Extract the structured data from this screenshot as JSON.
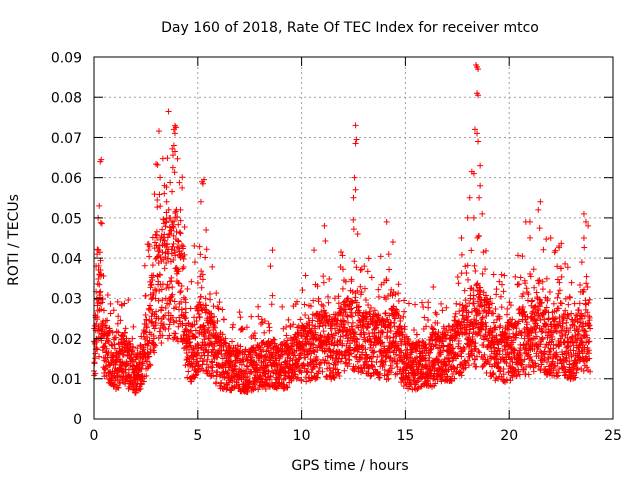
{
  "chart_data": {
    "type": "scatter",
    "title": "Day 160 of 2018, Rate Of TEC Index for receiver mtco",
    "xlabel": "GPS time / hours",
    "ylabel": "ROTI / TECUs",
    "xlim": [
      0,
      25
    ],
    "ylim": [
      0,
      0.09
    ],
    "x_ticks": [
      "0",
      "5",
      "10",
      "15",
      "20",
      "25"
    ],
    "y_ticks": [
      "0",
      "0.01",
      "0.02",
      "0.03",
      "0.04",
      "0.05",
      "0.06",
      "0.07",
      "0.08",
      "0.09"
    ],
    "grid": true,
    "marker": "plus",
    "series": [
      {
        "name": "ROTI",
        "color": "#ff0000",
        "baseline": [
          [
            0.0,
            0.016
          ],
          [
            0.3,
            0.03
          ],
          [
            0.5,
            0.018
          ],
          [
            1.0,
            0.013
          ],
          [
            1.5,
            0.015
          ],
          [
            2.0,
            0.011
          ],
          [
            2.3,
            0.013
          ],
          [
            2.7,
            0.022
          ],
          [
            3.0,
            0.033
          ],
          [
            3.5,
            0.035
          ],
          [
            4.0,
            0.036
          ],
          [
            4.3,
            0.03
          ],
          [
            4.5,
            0.015
          ],
          [
            5.0,
            0.02
          ],
          [
            5.3,
            0.022
          ],
          [
            5.7,
            0.018
          ],
          [
            6.0,
            0.014
          ],
          [
            6.5,
            0.013
          ],
          [
            7.0,
            0.012
          ],
          [
            7.5,
            0.012
          ],
          [
            8.0,
            0.013
          ],
          [
            8.5,
            0.014
          ],
          [
            9.0,
            0.013
          ],
          [
            9.5,
            0.014
          ],
          [
            10.0,
            0.016
          ],
          [
            10.5,
            0.017
          ],
          [
            11.0,
            0.02
          ],
          [
            11.5,
            0.017
          ],
          [
            12.0,
            0.02
          ],
          [
            12.5,
            0.022
          ],
          [
            13.0,
            0.02
          ],
          [
            13.5,
            0.019
          ],
          [
            14.0,
            0.017
          ],
          [
            14.5,
            0.02
          ],
          [
            15.0,
            0.014
          ],
          [
            15.5,
            0.013
          ],
          [
            16.0,
            0.014
          ],
          [
            16.5,
            0.015
          ],
          [
            17.0,
            0.016
          ],
          [
            17.5,
            0.018
          ],
          [
            18.0,
            0.022
          ],
          [
            18.5,
            0.024
          ],
          [
            19.0,
            0.02
          ],
          [
            19.5,
            0.016
          ],
          [
            20.0,
            0.017
          ],
          [
            20.5,
            0.019
          ],
          [
            21.0,
            0.02
          ],
          [
            21.5,
            0.022
          ],
          [
            22.0,
            0.018
          ],
          [
            22.5,
            0.02
          ],
          [
            23.0,
            0.017
          ],
          [
            23.5,
            0.02
          ],
          [
            23.9,
            0.021
          ]
        ],
        "highlights": [
          [
            0.1,
            0.038
          ],
          [
            0.15,
            0.041
          ],
          [
            0.25,
            0.036
          ],
          [
            0.3,
            0.064
          ],
          [
            0.35,
            0.0645
          ],
          [
            0.25,
            0.053
          ],
          [
            0.2,
            0.05
          ],
          [
            3.85,
            0.072
          ],
          [
            3.9,
            0.071
          ],
          [
            3.95,
            0.0725
          ],
          [
            3.85,
            0.068
          ],
          [
            3.9,
            0.0665
          ],
          [
            3.8,
            0.0625
          ],
          [
            3.5,
            0.054
          ],
          [
            3.6,
            0.052
          ],
          [
            5.2,
            0.059
          ],
          [
            5.25,
            0.0585
          ],
          [
            5.3,
            0.0595
          ],
          [
            5.15,
            0.054
          ],
          [
            5.4,
            0.047
          ],
          [
            8.5,
            0.038
          ],
          [
            8.6,
            0.042
          ],
          [
            10.6,
            0.042
          ],
          [
            11.1,
            0.048
          ],
          [
            12.6,
            0.073
          ],
          [
            12.65,
            0.0695
          ],
          [
            12.6,
            0.0685
          ],
          [
            12.55,
            0.06
          ],
          [
            12.6,
            0.057
          ],
          [
            12.5,
            0.055
          ],
          [
            12.7,
            0.046
          ],
          [
            14.1,
            0.049
          ],
          [
            14.4,
            0.044
          ],
          [
            14.2,
            0.041
          ],
          [
            17.7,
            0.045
          ],
          [
            18.0,
            0.05
          ],
          [
            18.1,
            0.055
          ],
          [
            18.2,
            0.0615
          ],
          [
            18.3,
            0.061
          ],
          [
            18.35,
            0.072
          ],
          [
            18.4,
            0.088
          ],
          [
            18.45,
            0.0875
          ],
          [
            18.5,
            0.087
          ],
          [
            18.45,
            0.081
          ],
          [
            18.5,
            0.0805
          ],
          [
            18.45,
            0.071
          ],
          [
            18.5,
            0.069
          ],
          [
            18.6,
            0.063
          ],
          [
            18.6,
            0.058
          ],
          [
            18.55,
            0.055
          ],
          [
            18.7,
            0.051
          ],
          [
            18.3,
            0.05
          ],
          [
            20.8,
            0.049
          ],
          [
            21.0,
            0.049
          ],
          [
            21.5,
            0.054
          ],
          [
            21.4,
            0.052
          ],
          [
            22.0,
            0.045
          ],
          [
            22.4,
            0.043
          ],
          [
            23.6,
            0.051
          ],
          [
            23.7,
            0.049
          ],
          [
            23.8,
            0.048
          ],
          [
            23.6,
            0.045
          ],
          [
            23.5,
            0.039
          ]
        ]
      }
    ]
  }
}
